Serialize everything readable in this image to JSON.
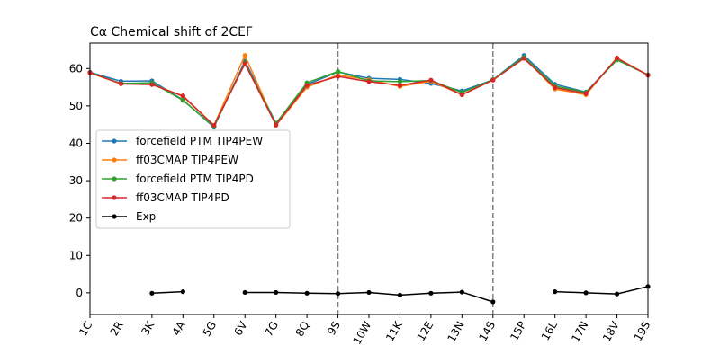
{
  "chart_data": {
    "type": "line",
    "title": "Cα Chemical shift of 2CEF",
    "xlabel": "",
    "ylabel": "",
    "categories": [
      "1C",
      "2R",
      "3K",
      "4A",
      "5G",
      "6V",
      "7G",
      "8Q",
      "9S",
      "10W",
      "11K",
      "12E",
      "13N",
      "14S",
      "15P",
      "16L",
      "17N",
      "18V",
      "19S"
    ],
    "yticks": [
      0,
      10,
      20,
      30,
      40,
      50,
      60
    ],
    "ylim": [
      -5.8,
      66.8
    ],
    "vertical_lines_at": [
      "9S",
      "14S"
    ],
    "grid": false,
    "legend_position": "center-left",
    "series": [
      {
        "name": "forcefield PTM TIP4PEW",
        "color": "#1f77b4",
        "values": [
          59.0,
          56.6,
          56.7,
          51.6,
          44.3,
          62.0,
          45.4,
          55.7,
          59.1,
          57.4,
          57.1,
          56.0,
          54.0,
          57.0,
          63.5,
          55.8,
          53.7,
          62.4,
          58.3
        ]
      },
      {
        "name": "ff03CMAP TIP4PEW",
        "color": "#ff7f0e",
        "values": [
          58.8,
          56.0,
          55.9,
          52.5,
          44.8,
          63.5,
          44.8,
          55.0,
          58.3,
          57.0,
          55.2,
          56.6,
          53.0,
          57.0,
          63.0,
          54.5,
          53.0,
          62.8,
          58.3
        ]
      },
      {
        "name": "forcefield PTM TIP4PD",
        "color": "#2ca02c",
        "values": [
          58.9,
          56.0,
          56.2,
          51.5,
          44.5,
          61.5,
          45.3,
          56.2,
          59.2,
          56.7,
          56.5,
          56.8,
          53.6,
          57.0,
          63.0,
          55.3,
          53.6,
          62.3,
          58.3
        ]
      },
      {
        "name": "ff03CMAP TIP4PD",
        "color": "#d62728",
        "values": [
          58.9,
          55.9,
          55.7,
          52.7,
          44.8,
          61.3,
          44.9,
          55.5,
          57.9,
          56.5,
          55.5,
          56.9,
          53.0,
          56.9,
          62.7,
          54.9,
          53.3,
          62.8,
          58.2
        ]
      },
      {
        "name": "Exp",
        "color": "#000000",
        "values": [
          null,
          null,
          -0.1,
          0.3,
          null,
          0.1,
          0.1,
          -0.1,
          -0.2,
          0.1,
          -0.6,
          -0.1,
          0.2,
          -2.4,
          null,
          0.3,
          0.0,
          -0.3,
          1.7
        ]
      }
    ]
  }
}
